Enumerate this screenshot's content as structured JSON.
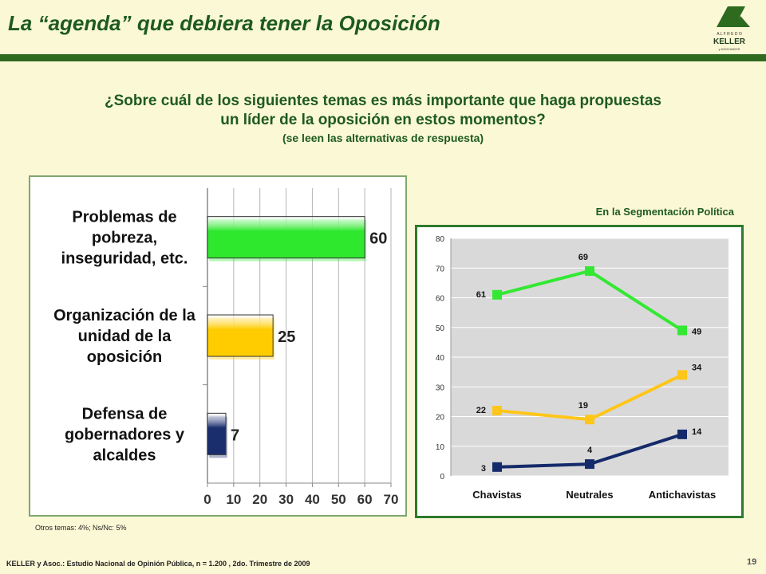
{
  "header": {
    "title": "La “agenda” que debiera tener la Oposición",
    "logo": {
      "top": "A L F R E D O",
      "main": "KELLER",
      "bottom": "y ASOCIADOS"
    }
  },
  "question": {
    "line1": "¿Sobre cuál de los siguientes temas es más importante que haga propuestas",
    "line2": "un líder de la oposición en estos momentos?",
    "line3": "(se leen las alternativas de respuesta)"
  },
  "chart_data": [
    {
      "type": "bar",
      "orientation": "horizontal",
      "categories": [
        [
          "Problemas de",
          "pobreza,",
          "inseguridad, etc."
        ],
        [
          "Organización de la",
          "unidad de la",
          "oposición"
        ],
        [
          "Defensa de",
          "gobernadores y",
          "alcaldes"
        ]
      ],
      "values": [
        60,
        25,
        7
      ],
      "colors": [
        "#2ee82e",
        "#ffcc00",
        "#1a2e6e"
      ],
      "xlim": [
        0,
        70
      ],
      "xticks": [
        "0",
        "10",
        "20",
        "30",
        "40",
        "50",
        "60",
        "70"
      ],
      "grid": true
    },
    {
      "type": "line",
      "title": "En la Segmentación Política",
      "categories": [
        "Chavistas",
        "Neutrales",
        "Antichavistas"
      ],
      "ylim": [
        0,
        80
      ],
      "yticks": [
        "0",
        "10",
        "20",
        "30",
        "40",
        "50",
        "60",
        "70",
        "80"
      ],
      "series": [
        {
          "values": [
            61,
            69,
            49
          ],
          "color": "#33e833"
        },
        {
          "values": [
            22,
            19,
            34
          ],
          "color": "#ffc61a"
        },
        {
          "values": [
            3,
            4,
            14
          ],
          "color": "#142a6a"
        }
      ],
      "grid": true
    }
  ],
  "notes": {
    "other": "Otros temas: 4%; Ns/Nc: 5%",
    "source": "KELLER y Asoc.: Estudio Nacional de Opinión Pública, n = 1.200 , 2do. Trimestre de 2009",
    "page": "19"
  }
}
